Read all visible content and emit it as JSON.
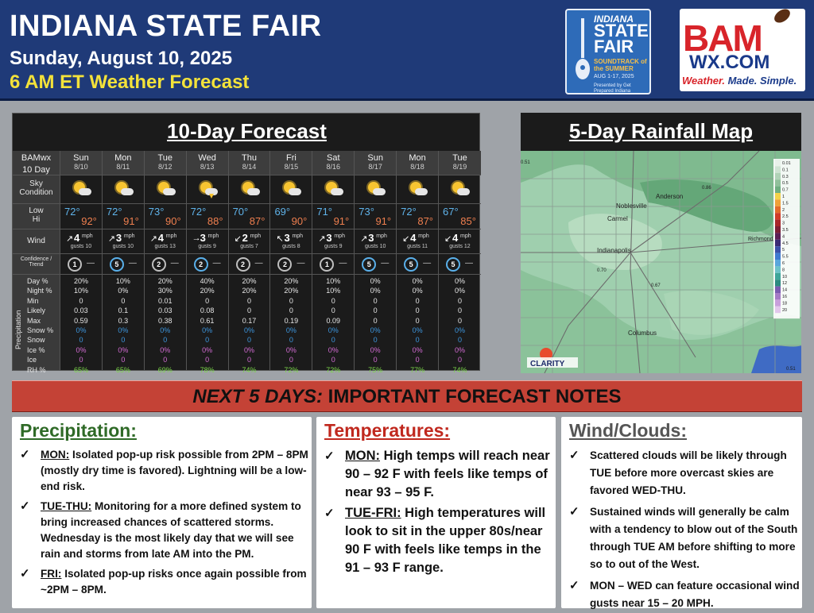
{
  "header": {
    "title": "INDIANA STATE FAIR",
    "date": "Sunday, August 10, 2025",
    "subtitle": "6 AM ET Weather Forecast"
  },
  "fair_logo": {
    "line1": "INDIANA",
    "line2": "STATE FAIR",
    "line3": "SOUNDTRACK of the SUMMER",
    "line4": "AUG 1-17, 2025",
    "line5": "Presented by Get Prepared Indiana"
  },
  "bam_logo": {
    "main": "BAM",
    "domain": "WX.COM",
    "tagline_red": "Weather.",
    "tagline_rest": " Made. Simple."
  },
  "forecast": {
    "title": "10-Day Forecast",
    "header_label_1": "BAMwx",
    "header_label_2": "10 Day",
    "row_labels": {
      "sky": "Sky Condition",
      "low": "Low",
      "hi": "Hi",
      "wind": "Wind",
      "trend_1": "Confidence /",
      "trend_2": "Trend",
      "precip_group": "Precipitation",
      "precip_rows": [
        "Day %",
        "Night %",
        "Min",
        "Likely",
        "Max",
        "Snow %",
        "Snow",
        "Ice %",
        "Ice",
        "RH %"
      ]
    },
    "wind_unit": "mph",
    "days": [
      {
        "day": "Sun",
        "date": "8/10",
        "sky": "sun-cloud",
        "low": "72°",
        "hi": "92°",
        "wind_dir": "↗",
        "wind": "4",
        "gusts": "gusts 10",
        "trend": "1",
        "trend_color": "#bfbfbf",
        "precip": [
          "20%",
          "10%",
          "0",
          "0.03",
          "0.59",
          "0%",
          "0",
          "0%",
          "0",
          "65%"
        ]
      },
      {
        "day": "Mon",
        "date": "8/11",
        "sky": "sun-cloud",
        "low": "72°",
        "hi": "91°",
        "wind_dir": "↗",
        "wind": "3",
        "gusts": "gusts 10",
        "trend": "5",
        "trend_color": "#5ab0ea",
        "precip": [
          "10%",
          "0%",
          "0",
          "0.1",
          "0.3",
          "0%",
          "0",
          "0%",
          "0",
          "65%"
        ]
      },
      {
        "day": "Tue",
        "date": "8/12",
        "sky": "sun-cloud",
        "low": "73°",
        "hi": "90°",
        "wind_dir": "↗",
        "wind": "4",
        "gusts": "gusts 13",
        "trend": "2",
        "trend_color": "#bfbfbf",
        "precip": [
          "20%",
          "30%",
          "0.01",
          "0.03",
          "0.38",
          "0%",
          "0",
          "0%",
          "0",
          "69%"
        ]
      },
      {
        "day": "Wed",
        "date": "8/13",
        "sky": "storm",
        "low": "72°",
        "hi": "88°",
        "wind_dir": "→",
        "wind": "3",
        "gusts": "gusts 9",
        "trend": "2",
        "trend_color": "#5ab0ea",
        "precip": [
          "40%",
          "20%",
          "0",
          "0.08",
          "0.61",
          "0%",
          "0",
          "0%",
          "0",
          "78%"
        ]
      },
      {
        "day": "Thu",
        "date": "8/14",
        "sky": "sun-cloud",
        "low": "70°",
        "hi": "87°",
        "wind_dir": "↙",
        "wind": "2",
        "gusts": "gusts 7",
        "trend": "2",
        "trend_color": "#bfbfbf",
        "precip": [
          "20%",
          "20%",
          "0",
          "0",
          "0.17",
          "0%",
          "0",
          "0%",
          "0",
          "74%"
        ]
      },
      {
        "day": "Fri",
        "date": "8/15",
        "sky": "sun-cloud",
        "low": "69°",
        "hi": "90°",
        "wind_dir": "↖",
        "wind": "3",
        "gusts": "gusts 8",
        "trend": "2",
        "trend_color": "#bfbfbf",
        "precip": [
          "20%",
          "20%",
          "0",
          "0",
          "0.19",
          "0%",
          "0",
          "0%",
          "0",
          "72%"
        ]
      },
      {
        "day": "Sat",
        "date": "8/16",
        "sky": "sun-cloud",
        "low": "71°",
        "hi": "91°",
        "wind_dir": "↗",
        "wind": "3",
        "gusts": "gusts 9",
        "trend": "1",
        "trend_color": "#bfbfbf",
        "precip": [
          "10%",
          "10%",
          "0",
          "0",
          "0.09",
          "0%",
          "0",
          "0%",
          "0",
          "72%"
        ]
      },
      {
        "day": "Sun",
        "date": "8/17",
        "sky": "sun-cloud",
        "low": "73°",
        "hi": "91°",
        "wind_dir": "↗",
        "wind": "3",
        "gusts": "gusts 10",
        "trend": "5",
        "trend_color": "#5ab0ea",
        "precip": [
          "0%",
          "0%",
          "0",
          "0",
          "0",
          "0%",
          "0",
          "0%",
          "0",
          "75%"
        ]
      },
      {
        "day": "Mon",
        "date": "8/18",
        "sky": "sun-cloud",
        "low": "72°",
        "hi": "87°",
        "wind_dir": "↙",
        "wind": "4",
        "gusts": "gusts 11",
        "trend": "5",
        "trend_color": "#5ab0ea",
        "precip": [
          "0%",
          "0%",
          "0",
          "0",
          "0",
          "0%",
          "0",
          "0%",
          "0",
          "77%"
        ]
      },
      {
        "day": "Tue",
        "date": "8/19",
        "sky": "sun-cloud",
        "low": "67°",
        "hi": "85°",
        "wind_dir": "↙",
        "wind": "4",
        "gusts": "gusts 12",
        "trend": "5",
        "trend_color": "#5ab0ea",
        "precip": [
          "0%",
          "0%",
          "0",
          "0",
          "0",
          "0%",
          "0",
          "0%",
          "0",
          "74%"
        ]
      }
    ]
  },
  "map": {
    "title": "5-Day Rainfall Map",
    "cities": [
      "Anderson",
      "Noblesville",
      "Carmel",
      "Indianapolis",
      "Columbus",
      "Richmond"
    ],
    "values": [
      "0.86",
      "0.70",
      "0.67",
      "0.51",
      "0.51"
    ],
    "legend": [
      "0.01",
      "0.1",
      "0.3",
      "0.5",
      "0.7",
      "1",
      "1.5",
      "2",
      "2.5",
      "3",
      "3.5",
      "4",
      "4.5",
      "5",
      "5.5",
      "6",
      "8",
      "10",
      "12",
      "14",
      "16",
      "18",
      "20"
    ],
    "legend_colors": [
      "#e8f1ea",
      "#cfe3d3",
      "#b0d2b7",
      "#90c09b",
      "#6fae80",
      "#f2d24a",
      "#f0a038",
      "#e36a2a",
      "#d03b28",
      "#a8262a",
      "#7c1e35",
      "#5b1f55",
      "#3a2a74",
      "#3a4fa8",
      "#3f7ad0",
      "#5aa6dc",
      "#6cc2c8",
      "#3ea69a",
      "#2c8a80",
      "#7a5ab0",
      "#a57ac6",
      "#c8a0dc",
      "#e2c8ec"
    ],
    "credit": "CLARITY"
  },
  "banner": {
    "italic": "NEXT 5 DAYS:",
    "rest": " IMPORTANT FORECAST NOTES"
  },
  "notes": {
    "precipitation": {
      "title": "Precipitation:",
      "items": [
        {
          "lead": "MON:",
          "text": " Isolated pop-up risk possible from 2PM – 8PM (mostly dry time is favored). Lightning will be a low-end risk."
        },
        {
          "lead": "TUE-THU:",
          "text": " Monitoring for a more defined system to bring increased chances of scattered storms. Wednesday is the most likely day that we will see rain and storms from late AM into the PM."
        },
        {
          "lead": "FRI:",
          "text": " Isolated pop-up risks once again possible from ~2PM – 8PM."
        }
      ]
    },
    "temperatures": {
      "title": "Temperatures:",
      "items": [
        {
          "lead": "MON:",
          "text": " High temps will reach near 90 – 92 F with feels like temps of near 93 – 95 F."
        },
        {
          "lead": "TUE-FRI:",
          "text": " High temperatures will look to sit in the upper 80s/near 90 F with feels like temps in the 91 – 93 F range."
        }
      ]
    },
    "wind_clouds": {
      "title": "Wind/Clouds:",
      "items": [
        {
          "lead": "",
          "text": "Scattered clouds will be likely through TUE before more overcast skies are favored WED-THU."
        },
        {
          "lead": "",
          "text": "Sustained winds will generally be calm with a tendency to blow out of the South through TUE AM before shifting to more so to out of the West."
        },
        {
          "lead": "",
          "text": "MON – WED can feature occasional wind gusts near 15 – 20 MPH."
        }
      ]
    }
  }
}
